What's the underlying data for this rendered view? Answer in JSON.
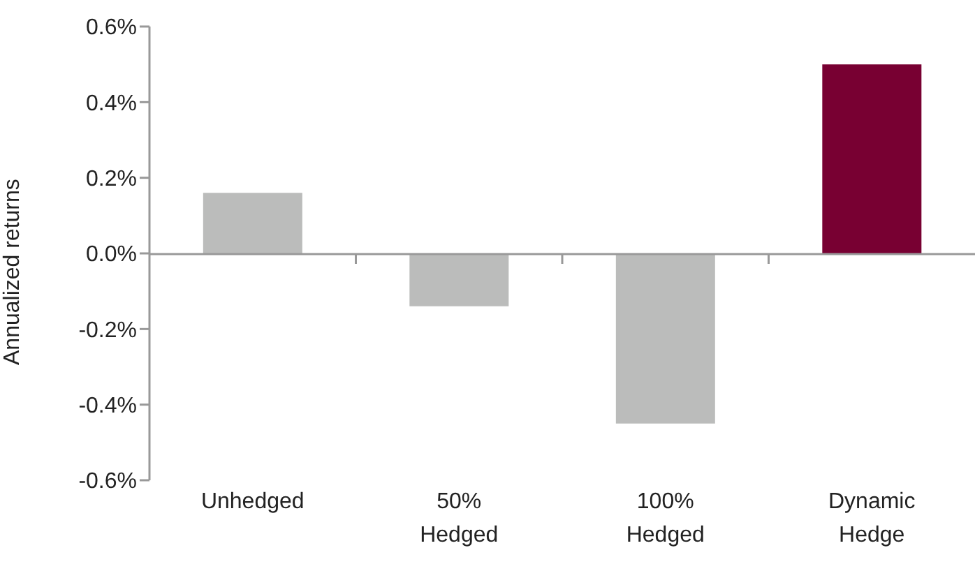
{
  "chart_data": {
    "type": "bar",
    "ylabel": "Annualized returns",
    "categories": [
      "Unhedged",
      "50% Hedged",
      "100% Hedged",
      "Dynamic Hedge"
    ],
    "values": [
      0.16,
      -0.14,
      -0.45,
      0.5
    ],
    "colors": [
      "#bbbcbb",
      "#bbbcbb",
      "#bbbcbb",
      "#780032"
    ],
    "ylim": [
      -0.6,
      0.6
    ],
    "yticks": [
      {
        "value": -0.6,
        "label": "-0.6%"
      },
      {
        "value": -0.4,
        "label": "-0.4%"
      },
      {
        "value": -0.2,
        "label": "-0.2%"
      },
      {
        "value": 0,
        "label": "0.0%"
      },
      {
        "value": 0.2,
        "label": "0.2%"
      },
      {
        "value": 0.4,
        "label": "0.4%"
      },
      {
        "value": 0.6,
        "label": "0.6%"
      }
    ],
    "legend": false
  }
}
